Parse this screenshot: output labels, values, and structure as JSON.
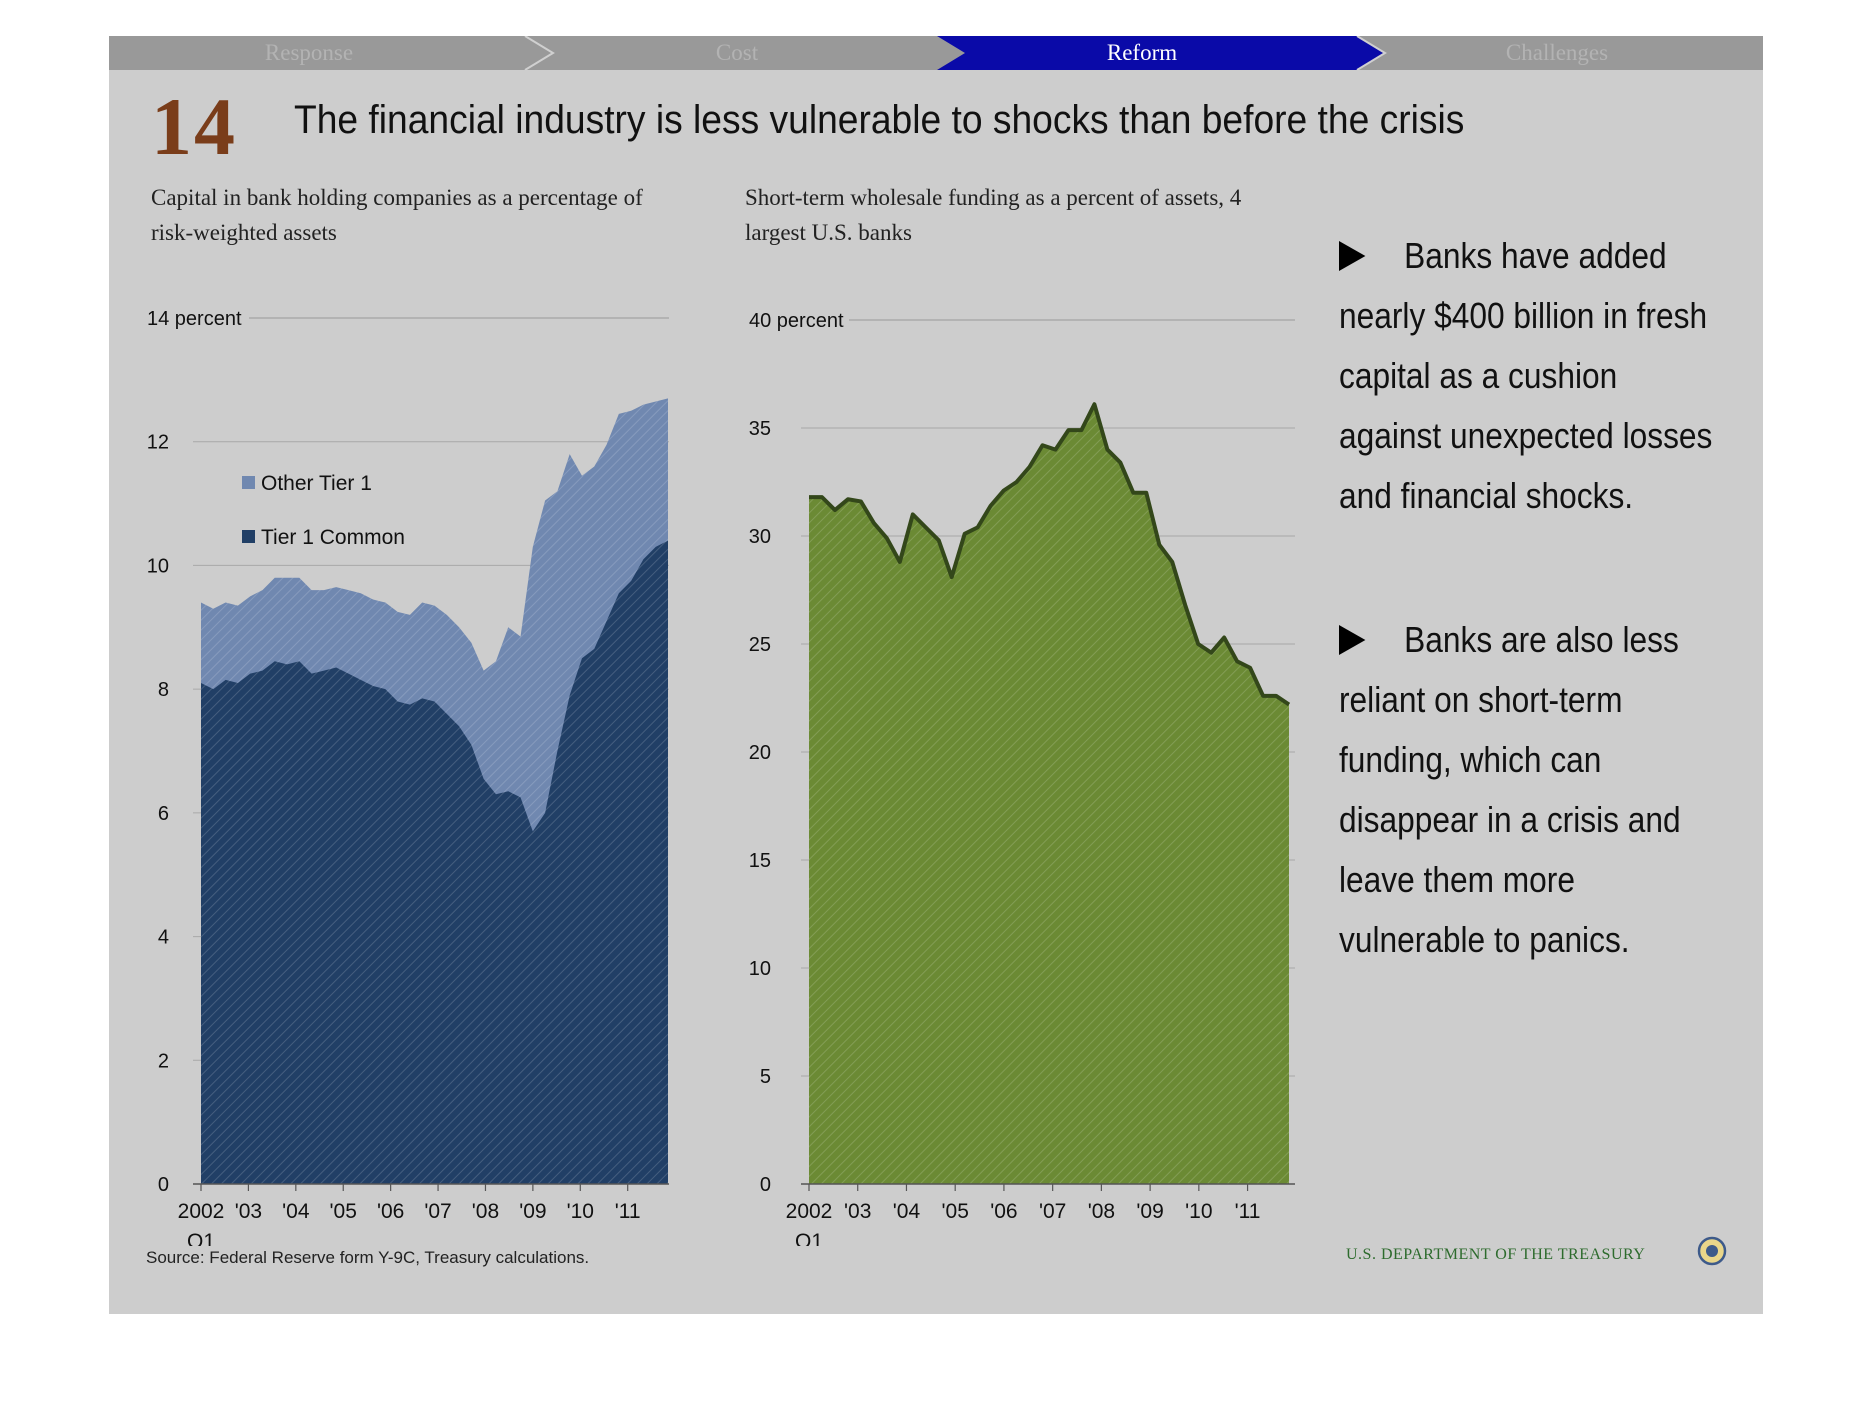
{
  "nav": {
    "tabs": [
      {
        "label": "Response",
        "active": false
      },
      {
        "label": "Cost",
        "active": false
      },
      {
        "label": "Reform",
        "active": true
      },
      {
        "label": "Challenges",
        "active": false
      }
    ],
    "active_color": "#0a0aa8",
    "inactive_color": "#999999"
  },
  "slide": {
    "number": "14",
    "title": "The financial industry is less vulnerable to shocks than before the crisis"
  },
  "bullets": [
    "Banks have added nearly  $400 billion in fresh capital as a cushion against unexpected losses and financial shocks.",
    "Banks are also less reliant on short-term funding, which can disappear in a crisis and leave them more vulnerable to panics."
  ],
  "footer": {
    "source": "Source: Federal Reserve form Y-9C, Treasury calculations.",
    "agency": "U.S. DEPARTMENT OF THE TREASURY"
  },
  "chart_data": [
    {
      "type": "area",
      "subtitle": "Capital in bank holding companies as a percentage of risk-weighted assets",
      "ylabel_top": "14 percent",
      "ylim": [
        0,
        14
      ],
      "yticks": [
        "0",
        "2",
        "4",
        "6",
        "8",
        "10",
        "12"
      ],
      "xticks": [
        "2002",
        "'03",
        "'04",
        "'05",
        "'06",
        "'07",
        "'08",
        "'09",
        "'10",
        "'11"
      ],
      "xtick_sub": "Q1",
      "stacked": true,
      "grid": true,
      "legend_position": "upper-left",
      "series": [
        {
          "name": "Tier 1 Common",
          "color": "#213f66",
          "values": [
            8.1,
            8.0,
            8.15,
            8.1,
            8.25,
            8.3,
            8.45,
            8.4,
            8.45,
            8.25,
            8.3,
            8.35,
            8.25,
            8.15,
            8.05,
            8.0,
            7.8,
            7.75,
            7.85,
            7.8,
            7.6,
            7.4,
            7.1,
            6.55,
            6.3,
            6.35,
            6.25,
            5.7,
            6.0,
            7.0,
            7.9,
            8.5,
            8.65,
            9.1,
            9.55,
            9.75,
            10.1,
            10.3,
            10.4
          ]
        },
        {
          "name": "Other Tier 1",
          "color": "#7088b0",
          "values": [
            1.3,
            1.3,
            1.25,
            1.25,
            1.25,
            1.3,
            1.35,
            1.4,
            1.35,
            1.35,
            1.3,
            1.3,
            1.35,
            1.4,
            1.4,
            1.4,
            1.45,
            1.45,
            1.55,
            1.55,
            1.6,
            1.6,
            1.65,
            1.75,
            2.15,
            2.65,
            2.6,
            4.6,
            5.05,
            4.2,
            3.9,
            2.95,
            2.95,
            2.85,
            2.9,
            2.75,
            2.5,
            2.35,
            2.3
          ]
        }
      ]
    },
    {
      "type": "area",
      "subtitle": "Short-term wholesale funding as a percent of assets, 4 largest U.S. banks",
      "ylabel_top": "40 percent",
      "ylim": [
        0,
        40
      ],
      "yticks": [
        "0",
        "5",
        "10",
        "15",
        "20",
        "25",
        "30",
        "35"
      ],
      "xticks": [
        "2002",
        "'03",
        "'04",
        "'05",
        "'06",
        "'07",
        "'08",
        "'09",
        "'10",
        "'11"
      ],
      "xtick_sub": "Q1",
      "grid": true,
      "series": [
        {
          "name": "",
          "color": "#6b8a34",
          "values": [
            31.8,
            31.8,
            31.2,
            31.7,
            31.6,
            30.6,
            29.9,
            28.8,
            31.0,
            30.4,
            29.8,
            28.1,
            30.1,
            30.4,
            31.4,
            32.1,
            32.5,
            33.2,
            34.2,
            34.0,
            34.9,
            34.9,
            36.1,
            34.0,
            33.4,
            32.0,
            32.0,
            29.6,
            28.8,
            26.8,
            25.0,
            24.6,
            25.3,
            24.2,
            23.9,
            22.6,
            22.6,
            22.2
          ]
        }
      ]
    }
  ]
}
